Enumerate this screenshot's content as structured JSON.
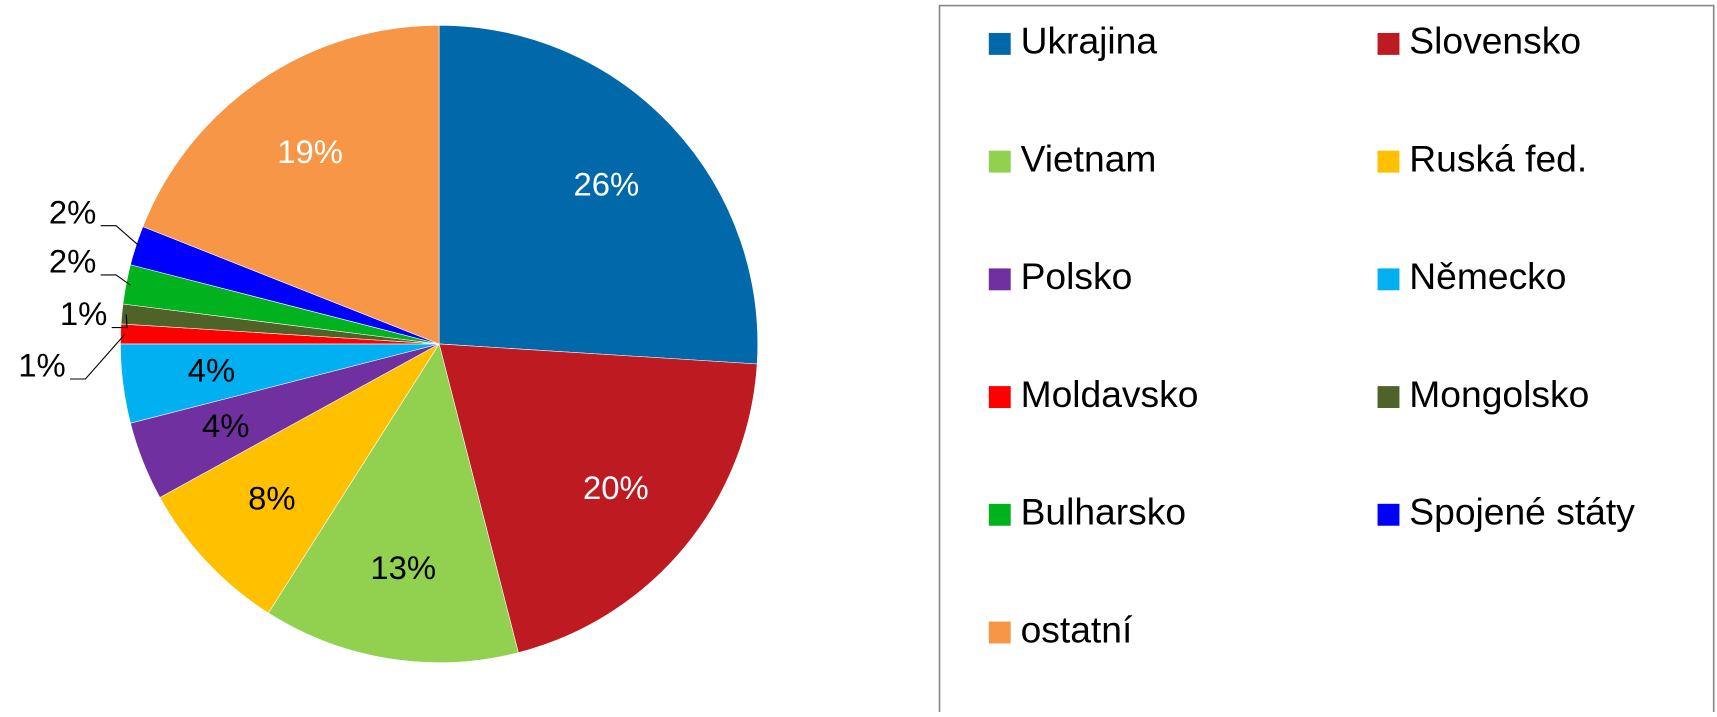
{
  "chart_data": {
    "type": "pie",
    "categories": [
      "Ukrajina",
      "Slovensko",
      "Vietnam",
      "Ruská fed.",
      "Polsko",
      "Německo",
      "Moldavsko",
      "Mongolsko",
      "Bulharsko",
      "Spojené státy",
      "ostatní"
    ],
    "values": [
      26,
      20,
      13,
      8,
      4,
      4,
      1,
      1,
      2,
      2,
      19
    ],
    "value_labels": [
      "26%",
      "20%",
      "13%",
      "8%",
      "4%",
      "4%",
      "1%",
      "1%",
      "2%",
      "2%",
      "19%"
    ],
    "colors": [
      "#0168aa",
      "#be1a21",
      "#92d050",
      "#ffc000",
      "#7030a0",
      "#00b0f0",
      "#ff0000",
      "#4f6228",
      "#00b31e",
      "#0000ff",
      "#f79646"
    ],
    "label_colors": [
      "#ffffff",
      "#ffffff",
      "#000000",
      "#000000",
      "#000000",
      "#000000",
      "#000000",
      "#000000",
      "#000000",
      "#000000",
      "#ffffff"
    ],
    "legend": "right"
  }
}
